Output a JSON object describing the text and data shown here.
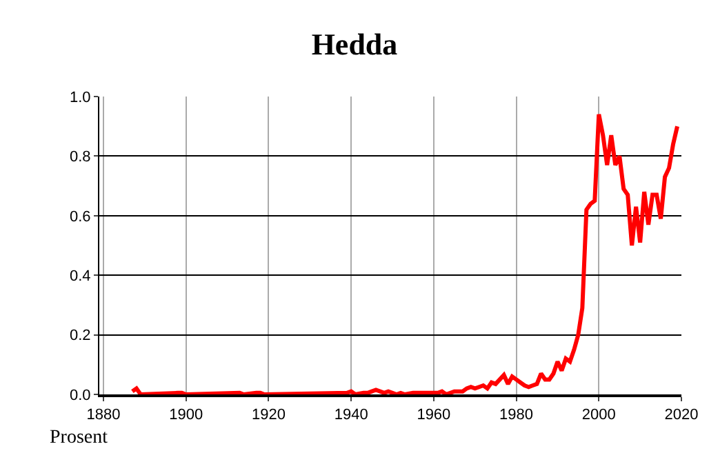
{
  "chart_data": {
    "type": "line",
    "title": "Hedda",
    "ylabel": "Prosent",
    "x": [
      1887,
      1888,
      1889,
      1898,
      1899,
      1900,
      1913,
      1914,
      1917,
      1918,
      1919,
      1939,
      1940,
      1941,
      1943,
      1944,
      1945,
      1946,
      1947,
      1948,
      1949,
      1950,
      1951,
      1952,
      1953,
      1955,
      1956,
      1957,
      1958,
      1959,
      1960,
      1961,
      1962,
      1963,
      1965,
      1966,
      1967,
      1968,
      1969,
      1970,
      1971,
      1972,
      1973,
      1974,
      1975,
      1976,
      1977,
      1978,
      1979,
      1980,
      1981,
      1982,
      1983,
      1984,
      1985,
      1986,
      1987,
      1988,
      1989,
      1990,
      1991,
      1992,
      1993,
      1994,
      1995,
      1996,
      1997,
      1998,
      1999,
      2000,
      2001,
      2002,
      2003,
      2004,
      2005,
      2006,
      2007,
      2008,
      2009,
      2010,
      2011,
      2012,
      2013,
      2014,
      2015,
      2016,
      2017,
      2018,
      2019
    ],
    "series": [
      {
        "color": "#ff0000",
        "values": [
          0.01,
          0.02,
          0,
          0.005,
          0.005,
          0,
          0.005,
          0,
          0.005,
          0.005,
          0,
          0.005,
          0.01,
          0,
          0.005,
          0.005,
          0.01,
          0.015,
          0.01,
          0.005,
          0.01,
          0.005,
          0,
          0.005,
          0,
          0.005,
          0.005,
          0.005,
          0.005,
          0.005,
          0.005,
          0.005,
          0.01,
          0,
          0.01,
          0.01,
          0.01,
          0.02,
          0.025,
          0.02,
          0.025,
          0.03,
          0.02,
          0.04,
          0.035,
          0.05,
          0.065,
          0.035,
          0.06,
          0.05,
          0.04,
          0.03,
          0.025,
          0.03,
          0.035,
          0.07,
          0.05,
          0.05,
          0.07,
          0.11,
          0.08,
          0.12,
          0.11,
          0.15,
          0.2,
          0.29,
          0.62,
          0.64,
          0.65,
          0.94,
          0.87,
          0.77,
          0.87,
          0.77,
          0.8,
          0.69,
          0.67,
          0.5,
          0.63,
          0.51,
          0.68,
          0.57,
          0.67,
          0.67,
          0.59,
          0.73,
          0.76,
          0.84,
          0.9
        ]
      }
    ],
    "xlim": [
      1879,
      2020
    ],
    "xticks": [
      1880,
      1900,
      1920,
      1940,
      1960,
      1980,
      2000,
      2020
    ],
    "ylim": [
      0,
      1
    ],
    "yticks": [
      {
        "value": 0,
        "label": "0.0"
      },
      {
        "value": 0.2,
        "label": "0.2"
      },
      {
        "value": 0.4,
        "label": "0.4"
      },
      {
        "value": 0.6,
        "label": "0.6"
      },
      {
        "value": 0.8,
        "label": "0.8"
      },
      {
        "value": 1,
        "label": "1.0"
      }
    ],
    "grid": true,
    "marker": "none",
    "line_style": "solid"
  }
}
